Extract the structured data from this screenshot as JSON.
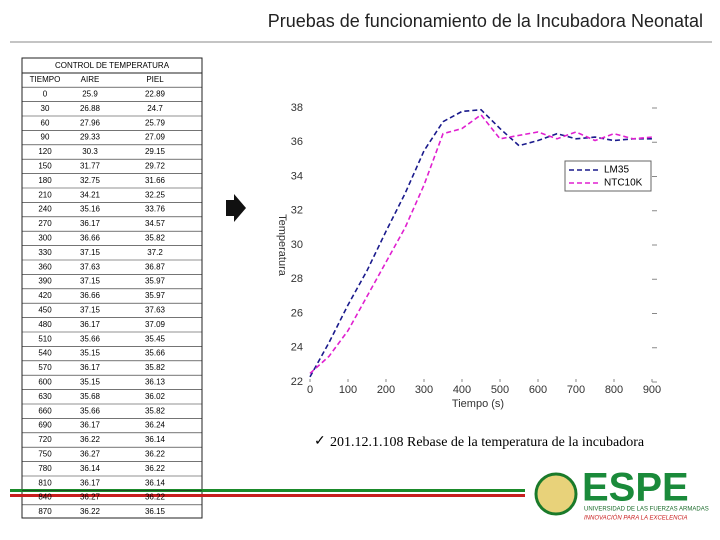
{
  "header": {
    "title": "Pruebas de funcionamiento de la Incubadora Neonatal"
  },
  "table": {
    "title": "CONTROL DE TEMPERATURA",
    "columns": [
      "TIEMPO",
      "AIRE",
      "PIEL"
    ],
    "rows": [
      [
        "0",
        "25.9",
        "22.89"
      ],
      [
        "30",
        "26.88",
        "24.7"
      ],
      [
        "60",
        "27.96",
        "25.79"
      ],
      [
        "90",
        "29.33",
        "27.09"
      ],
      [
        "120",
        "30.3",
        "29.15"
      ],
      [
        "150",
        "31.77",
        "29.72"
      ],
      [
        "180",
        "32.75",
        "31.66"
      ],
      [
        "210",
        "34.21",
        "32.25"
      ],
      [
        "240",
        "35.16",
        "33.76"
      ],
      [
        "270",
        "36.17",
        "34.57"
      ],
      [
        "300",
        "36.66",
        "35.82"
      ],
      [
        "330",
        "37.15",
        "37.2"
      ],
      [
        "360",
        "37.63",
        "36.87"
      ],
      [
        "390",
        "37.15",
        "35.97"
      ],
      [
        "420",
        "36.66",
        "35.97"
      ],
      [
        "450",
        "37.15",
        "37.63"
      ],
      [
        "480",
        "36.17",
        "37.09"
      ],
      [
        "510",
        "35.66",
        "35.45"
      ],
      [
        "540",
        "35.15",
        "35.66"
      ],
      [
        "570",
        "36.17",
        "35.82"
      ],
      [
        "600",
        "35.15",
        "36.13"
      ],
      [
        "630",
        "35.68",
        "36.02"
      ],
      [
        "660",
        "35.66",
        "35.82"
      ],
      [
        "690",
        "36.17",
        "36.24"
      ],
      [
        "720",
        "36.22",
        "36.14"
      ],
      [
        "750",
        "36.27",
        "36.22"
      ],
      [
        "780",
        "36.14",
        "36.22"
      ],
      [
        "810",
        "36.17",
        "36.14"
      ],
      [
        "840",
        "36.27",
        "36.22"
      ],
      [
        "870",
        "36.22",
        "36.15"
      ]
    ]
  },
  "chart_data": {
    "type": "line",
    "x_label": "Tiempo (s)",
    "y_label": "Temperatura",
    "x": [
      0,
      50,
      100,
      150,
      200,
      250,
      300,
      350,
      400,
      450,
      500,
      550,
      600,
      650,
      700,
      750,
      800,
      850,
      900
    ],
    "series": [
      {
        "name": "LM35",
        "color": "#1a1a8c",
        "values": [
          22.3,
          24.3,
          26.5,
          28.5,
          30.8,
          33,
          35.5,
          37.2,
          37.8,
          37.9,
          36.8,
          35.8,
          36.1,
          36.5,
          36.2,
          36.3,
          36.1,
          36.2,
          36.2
        ]
      },
      {
        "name": "NTC10K",
        "color": "#e020d0",
        "values": [
          22.5,
          23.5,
          25,
          27,
          29,
          31,
          33.5,
          36.5,
          36.8,
          37.6,
          36.2,
          36.4,
          36.6,
          36.2,
          36.6,
          36.1,
          36.5,
          36.2,
          36.3
        ]
      }
    ],
    "xlim": [
      0,
      900
    ],
    "xticks": [
      0,
      100,
      200,
      300,
      400,
      500,
      600,
      700,
      800,
      900
    ],
    "ylim": [
      22,
      38
    ],
    "yticks": [
      22,
      24,
      26,
      28,
      30,
      32,
      34,
      36,
      38
    ]
  },
  "caption": "201.12.1.108 Rebase de la temperatura de la incubadora",
  "logo": {
    "name": "ESPE",
    "line1": "UNIVERSIDAD DE LAS FUERZAS ARMADAS",
    "line2": "INNOVACIÓN PARA LA EXCELENCIA"
  }
}
